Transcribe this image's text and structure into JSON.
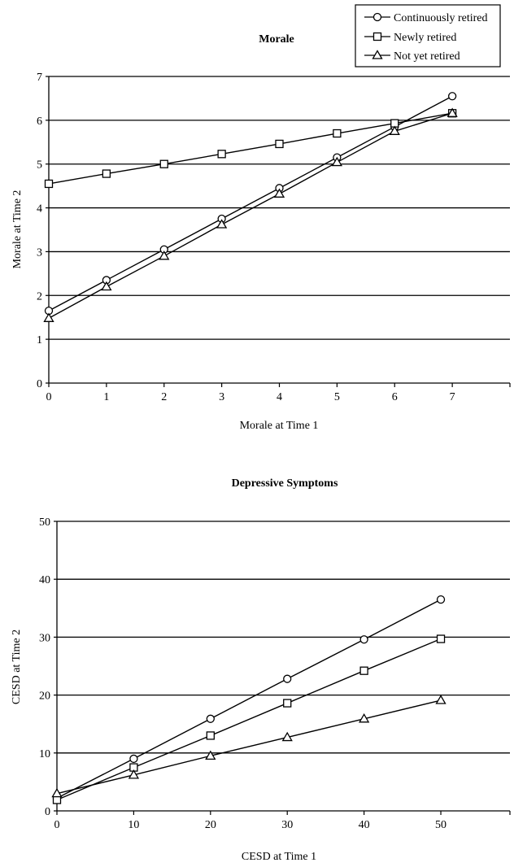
{
  "legend": {
    "entries": [
      {
        "label": "Continuously retired",
        "marker": "circle"
      },
      {
        "label": "Newly retired",
        "marker": "square"
      },
      {
        "label": "Not yet retired",
        "marker": "triangle"
      }
    ]
  },
  "chart_data": [
    {
      "type": "line",
      "title": "Morale",
      "xlabel": "Morale at Time 1",
      "ylabel": "Morale at Time 2",
      "x": [
        0,
        1,
        2,
        3,
        4,
        5,
        6,
        7
      ],
      "xlim": [
        0,
        8
      ],
      "ylim": [
        0,
        7
      ],
      "x_ticks": [
        0,
        1,
        2,
        3,
        4,
        5,
        6,
        7
      ],
      "y_ticks": [
        0,
        1,
        2,
        3,
        4,
        5,
        6,
        7
      ],
      "grid": "horizontal",
      "legend_position": "top-right",
      "series": [
        {
          "name": "Continuously retired",
          "marker": "circle",
          "values": [
            1.65,
            2.35,
            3.05,
            3.75,
            4.45,
            5.15,
            5.85,
            6.55
          ]
        },
        {
          "name": "Newly retired",
          "marker": "square",
          "values": [
            4.55,
            4.78,
            5.0,
            5.23,
            5.46,
            5.7,
            5.93,
            6.16
          ]
        },
        {
          "name": "Not yet retired",
          "marker": "triangle",
          "values": [
            1.48,
            2.2,
            2.9,
            3.62,
            4.32,
            5.04,
            5.75,
            6.16
          ]
        }
      ]
    },
    {
      "type": "line",
      "title": "Depressive Symptoms",
      "xlabel": "CESD at Time 1",
      "ylabel": "CESD at Time 2",
      "x": [
        0,
        10,
        20,
        30,
        40,
        50
      ],
      "xlim": [
        0,
        59
      ],
      "ylim": [
        0,
        50
      ],
      "x_ticks": [
        0,
        10,
        20,
        30,
        40,
        50
      ],
      "y_ticks": [
        0,
        10,
        20,
        30,
        40,
        50
      ],
      "grid": "horizontal",
      "series": [
        {
          "name": "Continuously retired",
          "marker": "circle",
          "values": [
            2.2,
            9.0,
            15.9,
            22.8,
            29.6,
            36.5
          ]
        },
        {
          "name": "Newly retired",
          "marker": "square",
          "values": [
            1.9,
            7.5,
            13.0,
            18.6,
            24.2,
            29.7
          ]
        },
        {
          "name": "Not yet retired",
          "marker": "triangle",
          "values": [
            3.0,
            6.2,
            9.5,
            12.7,
            15.9,
            19.1
          ]
        }
      ]
    }
  ]
}
